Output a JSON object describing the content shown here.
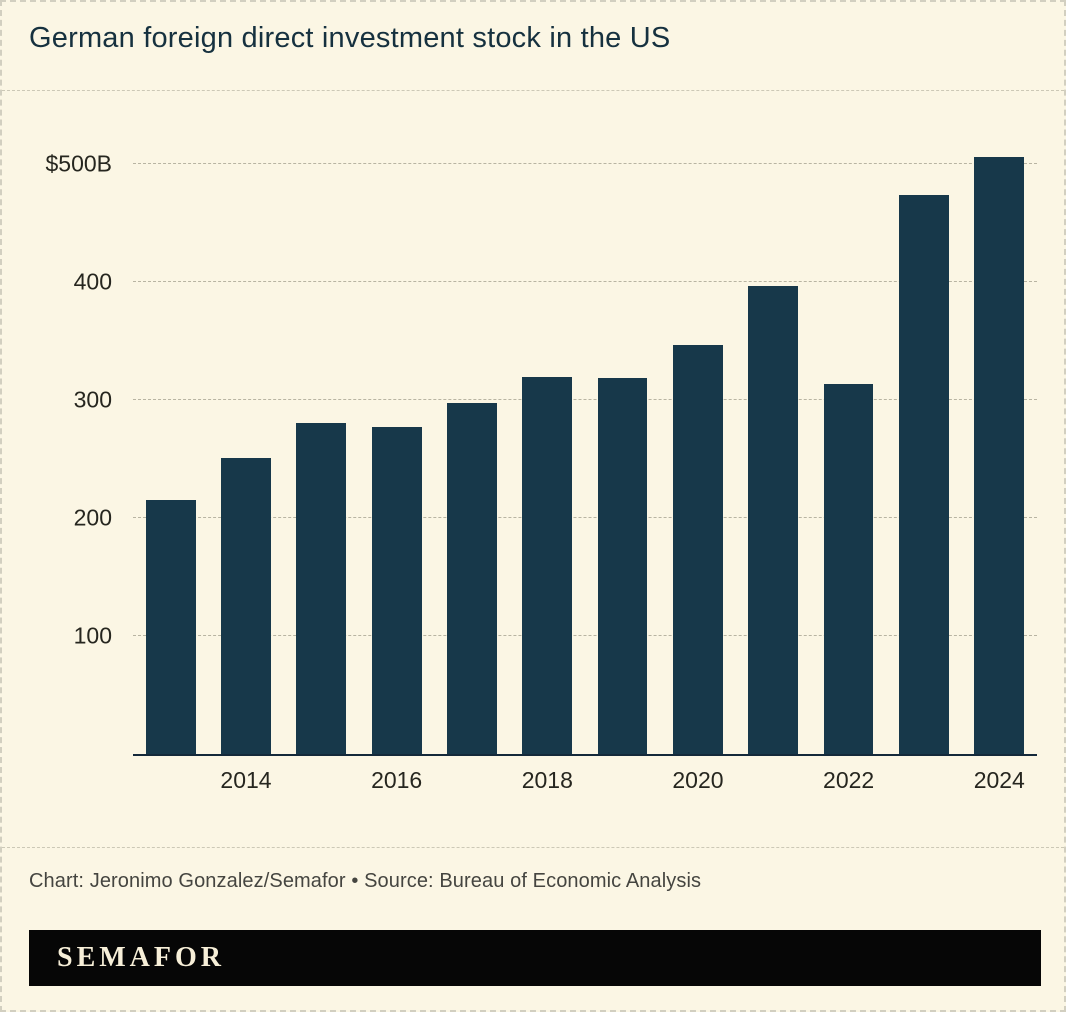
{
  "title": "German foreign direct investment stock in the US",
  "chart_data": {
    "type": "bar",
    "title": "German foreign direct investment stock in the US",
    "categories": [
      "2013",
      "2014",
      "2015",
      "2016",
      "2017",
      "2018",
      "2019",
      "2020",
      "2021",
      "2022",
      "2023",
      "2024"
    ],
    "values": [
      215,
      251,
      281,
      277,
      298,
      320,
      319,
      347,
      397,
      314,
      474,
      506
    ],
    "unit": "USD billions",
    "xlabel": "",
    "ylabel": "",
    "ylim": [
      0,
      530
    ],
    "y_ticks": [
      {
        "value": 100,
        "label": "100"
      },
      {
        "value": 200,
        "label": "200"
      },
      {
        "value": 300,
        "label": "300"
      },
      {
        "value": 400,
        "label": "400"
      },
      {
        "value": 500,
        "label": "$500B"
      }
    ],
    "x_tick_labels": [
      "2014",
      "2016",
      "2018",
      "2020",
      "2022",
      "2024"
    ],
    "grid": "horizontal-dashed",
    "legend": "none",
    "bar_color": "#17384a"
  },
  "footer": {
    "credit": "Chart: Jeronimo Gonzalez/Semafor • Source: Bureau of Economic Analysis",
    "brand": "SEMAFOR"
  },
  "colors": {
    "background": "#fbf6e4",
    "bar": "#17384a",
    "title_text": "#16313f",
    "axis_text": "#26261f",
    "gridline": "#b8b4a2",
    "baseline": "#14293a",
    "brand_bar_bg": "#060606",
    "brand_text": "#f7efd8"
  }
}
